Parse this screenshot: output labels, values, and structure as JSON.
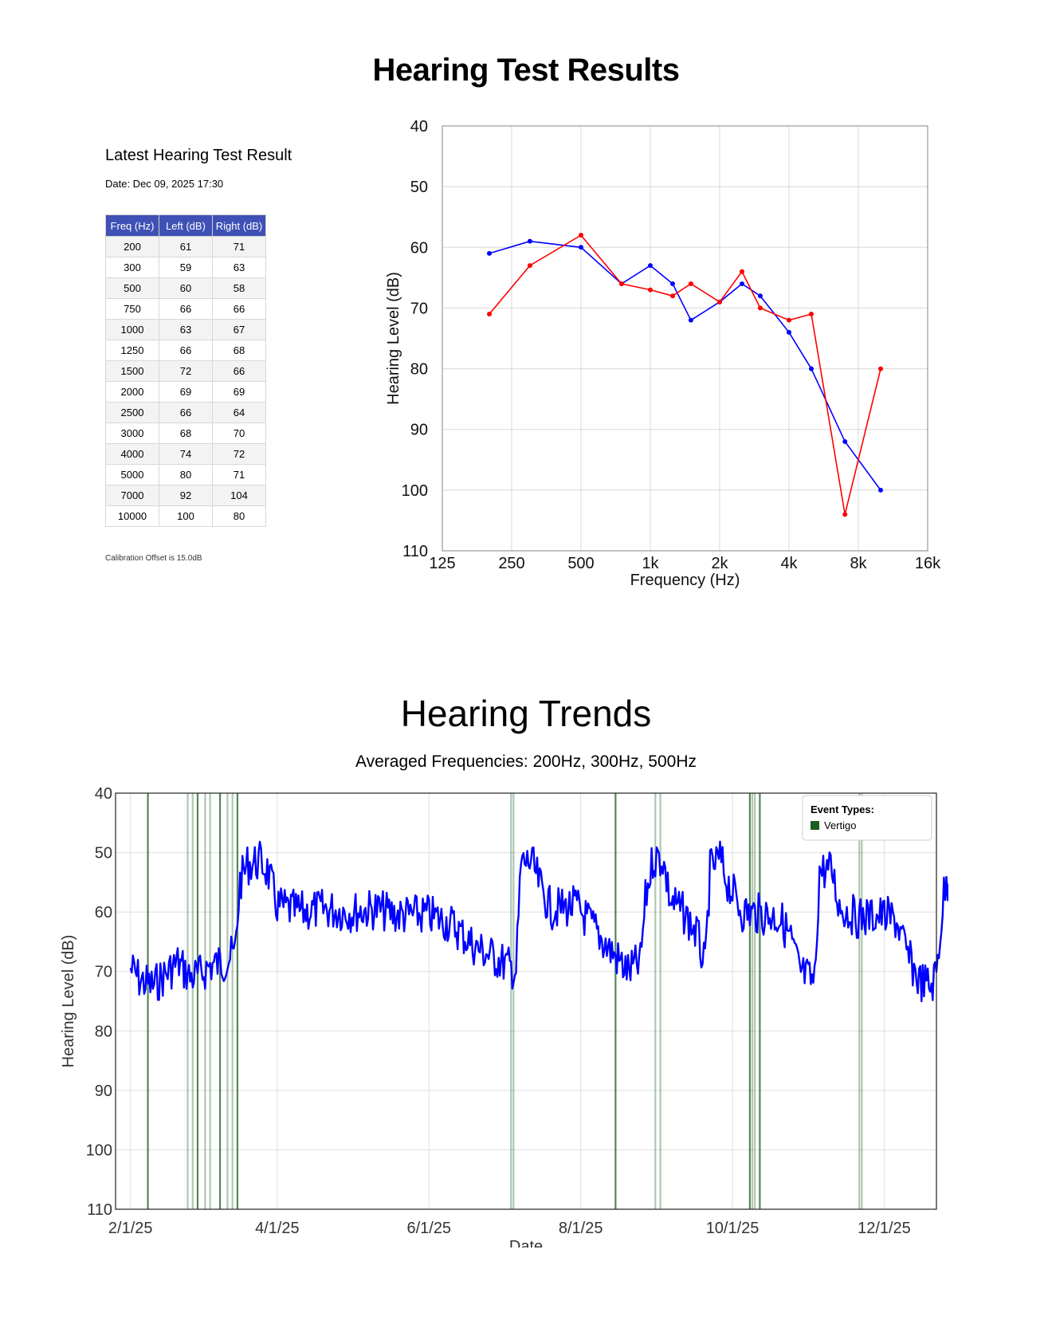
{
  "page_title": "Hearing Test Results",
  "latest": {
    "title": "Latest Hearing Test Result",
    "date": "Date: Dec 09, 2025 17:30",
    "columns": [
      "Freq (Hz)",
      "Left (dB)",
      "Right (dB)"
    ],
    "rows": [
      [
        "200",
        "61",
        "71"
      ],
      [
        "300",
        "59",
        "63"
      ],
      [
        "500",
        "60",
        "58"
      ],
      [
        "750",
        "66",
        "66"
      ],
      [
        "1000",
        "63",
        "67"
      ],
      [
        "1250",
        "66",
        "68"
      ],
      [
        "1500",
        "72",
        "66"
      ],
      [
        "2000",
        "69",
        "69"
      ],
      [
        "2500",
        "66",
        "64"
      ],
      [
        "3000",
        "68",
        "70"
      ],
      [
        "4000",
        "74",
        "72"
      ],
      [
        "5000",
        "80",
        "71"
      ],
      [
        "7000",
        "92",
        "104"
      ],
      [
        "10000",
        "100",
        "80"
      ]
    ],
    "calibration": "Calibration Offset is 15.0dB"
  },
  "trends": {
    "title": "Hearing Trends",
    "subtitle": "Averaged Frequencies: 200Hz, 300Hz, 500Hz"
  },
  "chart_data": [
    {
      "type": "line",
      "title": "",
      "xlabel": "Frequency (Hz)",
      "ylabel": "Hearing Level (dB)",
      "x_scale": "log2",
      "xlim": [
        125,
        16000
      ],
      "x_ticks": [
        125,
        250,
        500,
        1000,
        2000,
        4000,
        8000,
        16000
      ],
      "x_tick_labels": [
        "125",
        "250",
        "500",
        "1k",
        "2k",
        "4k",
        "8k",
        "16k"
      ],
      "ylim": [
        40,
        110
      ],
      "y_inverted": true,
      "y_ticks": [
        40,
        50,
        60,
        70,
        80,
        90,
        100,
        110
      ],
      "grid": true,
      "x": [
        200,
        300,
        500,
        750,
        1000,
        1250,
        1500,
        2000,
        2500,
        3000,
        4000,
        5000,
        7000,
        10000
      ],
      "series": [
        {
          "name": "Left (dB)",
          "color": "#0000ff",
          "values": [
            61,
            59,
            60,
            66,
            63,
            66,
            72,
            69,
            66,
            68,
            74,
            80,
            92,
            100
          ]
        },
        {
          "name": "Right (dB)",
          "color": "#ff0000",
          "values": [
            71,
            63,
            58,
            66,
            67,
            68,
            66,
            69,
            64,
            70,
            72,
            71,
            104,
            80
          ]
        }
      ]
    },
    {
      "type": "line",
      "title": "Averaged Frequencies: 200Hz, 300Hz, 500Hz",
      "xlabel": "Date",
      "ylabel": "Hearing Level (dB)",
      "xlim": [
        "2025-01-26",
        "2025-12-22"
      ],
      "x_ticks": [
        "2025-02-01",
        "2025-04-01",
        "2025-06-01",
        "2025-08-01",
        "2025-10-01",
        "2025-12-01"
      ],
      "x_tick_labels": [
        "2/1/25",
        "4/1/25",
        "6/1/25",
        "8/1/25",
        "10/1/25",
        "12/1/25"
      ],
      "ylim": [
        40,
        110
      ],
      "y_inverted": true,
      "y_ticks": [
        40,
        50,
        60,
        70,
        80,
        90,
        100,
        110
      ],
      "grid": true,
      "legend": {
        "title": "Event Types:",
        "placement": "top-right",
        "items": [
          {
            "label": "Vertigo",
            "color": "#1b5e20"
          }
        ]
      },
      "series_color": "#0000ff",
      "series": [
        {
          "name": "Hearing Level",
          "points": [
            [
              "2025-02-01",
              69.5
            ],
            [
              "2025-02-05",
              71.5
            ],
            [
              "2025-02-10",
              72.5
            ],
            [
              "2025-02-15",
              70.5
            ],
            [
              "2025-02-20",
              68.5
            ],
            [
              "2025-02-25",
              71.0
            ],
            [
              "2025-03-01",
              70.5
            ],
            [
              "2025-03-05",
              69.0
            ],
            [
              "2025-03-10",
              68.5
            ],
            [
              "2025-03-15",
              67.0
            ],
            [
              "2025-03-17",
              55.0
            ],
            [
              "2025-03-20",
              52.0
            ],
            [
              "2025-03-25",
              51.5
            ],
            [
              "2025-03-28",
              53.0
            ],
            [
              "2025-04-01",
              59.0
            ],
            [
              "2025-04-10",
              60.0
            ],
            [
              "2025-04-20",
              59.5
            ],
            [
              "2025-05-01",
              60.0
            ],
            [
              "2025-05-10",
              59.5
            ],
            [
              "2025-05-20",
              60.5
            ],
            [
              "2025-06-01",
              60.5
            ],
            [
              "2025-06-10",
              62.0
            ],
            [
              "2025-06-20",
              66.0
            ],
            [
              "2025-07-01",
              68.5
            ],
            [
              "2025-07-06",
              70.0
            ],
            [
              "2025-07-08",
              52.0
            ],
            [
              "2025-07-12",
              51.5
            ],
            [
              "2025-07-16",
              56.0
            ],
            [
              "2025-07-20",
              59.5
            ],
            [
              "2025-07-30",
              59.0
            ],
            [
              "2025-08-05",
              62.0
            ],
            [
              "2025-08-12",
              66.0
            ],
            [
              "2025-08-20",
              70.0
            ],
            [
              "2025-08-25",
              68.5
            ],
            [
              "2025-08-27",
              58.0
            ],
            [
              "2025-08-30",
              51.0
            ],
            [
              "2025-09-03",
              51.0
            ],
            [
              "2025-09-06",
              58.0
            ],
            [
              "2025-09-12",
              60.5
            ],
            [
              "2025-09-17",
              64.0
            ],
            [
              "2025-09-20",
              69.5
            ],
            [
              "2025-09-22",
              53.0
            ],
            [
              "2025-09-26",
              51.0
            ],
            [
              "2025-09-29",
              55.0
            ],
            [
              "2025-10-05",
              60.0
            ],
            [
              "2025-10-15",
              60.5
            ],
            [
              "2025-10-20",
              61.0
            ],
            [
              "2025-10-24",
              64.0
            ],
            [
              "2025-10-28",
              70.0
            ],
            [
              "2025-11-03",
              72.0
            ],
            [
              "2025-11-05",
              53.0
            ],
            [
              "2025-11-10",
              53.0
            ],
            [
              "2025-11-13",
              59.0
            ],
            [
              "2025-11-20",
              61.0
            ],
            [
              "2025-11-30",
              60.5
            ],
            [
              "2025-12-06",
              61.5
            ],
            [
              "2025-12-10",
              67.0
            ],
            [
              "2025-12-15",
              71.5
            ],
            [
              "2025-12-20",
              72.5
            ],
            [
              "2025-12-22",
              70.0
            ],
            [
              "2025-12-25",
              57.0
            ],
            [
              "2025-12-28",
              53.0
            ],
            [
              "2026-01-02",
              58.0
            ],
            [
              "2026-01-04",
              61.0
            ]
          ]
        }
      ],
      "events": {
        "type": "Vertigo",
        "dates": [
          "2025-02-08",
          "2025-02-24",
          "2025-02-26",
          "2025-02-28",
          "2025-03-03",
          "2025-03-05",
          "2025-03-09",
          "2025-03-12",
          "2025-03-14",
          "2025-03-16",
          "2025-07-04",
          "2025-07-05",
          "2025-08-15",
          "2025-08-31",
          "2025-09-02",
          "2025-10-08",
          "2025-10-09",
          "2025-10-10",
          "2025-10-12",
          "2025-11-21",
          "2025-11-22"
        ]
      }
    }
  ]
}
